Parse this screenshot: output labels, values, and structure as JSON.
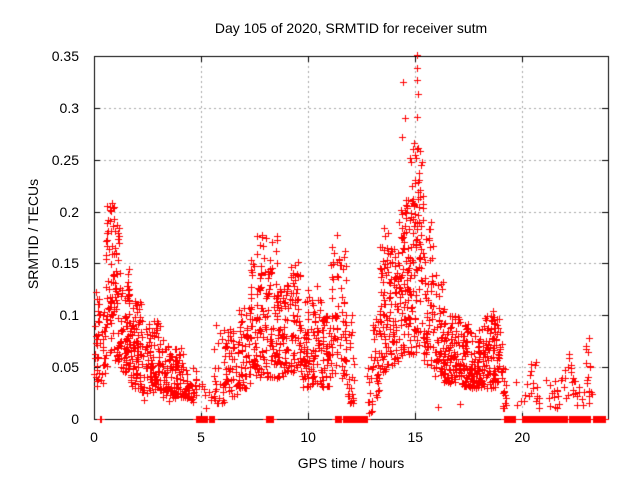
{
  "window": {
    "background": "#ffffff",
    "border_color": "#000000"
  },
  "chart_data": {
    "type": "scatter",
    "title": "Day 105 of 2020, SRMTID for receiver sutm",
    "xlabel": "GPS time / hours",
    "ylabel": "SRMTID / TECUs",
    "xlim": [
      0,
      24
    ],
    "ylim": [
      0,
      0.35
    ],
    "xticks": [
      0,
      5,
      10,
      15,
      20
    ],
    "xtick_labels": [
      "0",
      "5",
      "10",
      "15",
      "20"
    ],
    "yticks": [
      0,
      0.05,
      0.1,
      0.15,
      0.2,
      0.25,
      0.3,
      0.35
    ],
    "ytick_labels": [
      "0",
      "0.05",
      "0.1",
      "0.15",
      "0.2",
      "0.25",
      "0.3",
      "0.35"
    ],
    "legend": "none",
    "grid": {
      "visible": true,
      "style": "dashed",
      "color": "#a8a8a8"
    },
    "marker": {
      "shape": "plus",
      "color": "#ff0000",
      "size": 7
    },
    "series_name": "SRMTID",
    "seed": 20200105,
    "cluster_fields": [
      "t_start",
      "t_end",
      "count",
      "v_min",
      "v_max",
      "bias_exponent"
    ],
    "clusters": [
      [
        0.02,
        0.3,
        30,
        0.03,
        0.135,
        1.2
      ],
      [
        0.3,
        0.6,
        22,
        0.035,
        0.105,
        1.3
      ],
      [
        0.55,
        0.95,
        55,
        0.06,
        0.205,
        0.9
      ],
      [
        0.95,
        1.25,
        45,
        0.055,
        0.19,
        1.0
      ],
      [
        1.25,
        1.65,
        60,
        0.045,
        0.145,
        1.2
      ],
      [
        1.65,
        2.2,
        80,
        0.03,
        0.115,
        1.3
      ],
      [
        2.2,
        3.2,
        110,
        0.025,
        0.095,
        1.4
      ],
      [
        3.2,
        4.3,
        100,
        0.02,
        0.07,
        1.3
      ],
      [
        4.3,
        4.8,
        30,
        0.015,
        0.052,
        1.2
      ],
      [
        4.85,
        5.6,
        10,
        0.008,
        0.035,
        1.2
      ],
      [
        5.6,
        6.1,
        30,
        0.015,
        0.095,
        1.5
      ],
      [
        6.1,
        6.7,
        45,
        0.022,
        0.088,
        1.3
      ],
      [
        6.7,
        7.3,
        55,
        0.03,
        0.11,
        1.4
      ],
      [
        7.3,
        7.8,
        55,
        0.04,
        0.155,
        1.3
      ],
      [
        7.6,
        8.6,
        15,
        0.12,
        0.178,
        1.0
      ],
      [
        7.8,
        8.45,
        60,
        0.04,
        0.15,
        1.3
      ],
      [
        8.45,
        9.1,
        75,
        0.04,
        0.13,
        1.3
      ],
      [
        9.1,
        9.7,
        65,
        0.045,
        0.15,
        1.2
      ],
      [
        9.7,
        10.6,
        90,
        0.03,
        0.125,
        1.4
      ],
      [
        10.6,
        11.05,
        45,
        0.03,
        0.1,
        1.3
      ],
      [
        11.05,
        11.8,
        75,
        0.04,
        0.172,
        1.2
      ],
      [
        11.8,
        12.2,
        25,
        0.015,
        0.11,
        1.5
      ],
      [
        12.75,
        13.0,
        15,
        0.005,
        0.06,
        1.3
      ],
      [
        13.0,
        13.35,
        30,
        0.02,
        0.105,
        1.2
      ],
      [
        13.35,
        13.75,
        55,
        0.045,
        0.18,
        1.1
      ],
      [
        13.75,
        14.25,
        60,
        0.05,
        0.165,
        1.2
      ],
      [
        14.25,
        14.75,
        75,
        0.06,
        0.215,
        1.1
      ],
      [
        14.75,
        15.4,
        105,
        0.06,
        0.262,
        1.1
      ],
      [
        15.4,
        15.85,
        55,
        0.05,
        0.19,
        1.2
      ],
      [
        15.85,
        16.35,
        55,
        0.04,
        0.14,
        1.3
      ],
      [
        16.35,
        17.1,
        85,
        0.035,
        0.1,
        1.3
      ],
      [
        17.1,
        18.1,
        115,
        0.03,
        0.092,
        1.3
      ],
      [
        18.1,
        19.05,
        110,
        0.03,
        0.1,
        1.3
      ],
      [
        19.05,
        19.35,
        14,
        0.01,
        0.055,
        1.3
      ],
      [
        19.7,
        20.3,
        6,
        0.012,
        0.04,
        1.2
      ],
      [
        20.3,
        20.7,
        13,
        0.015,
        0.056,
        1.2
      ],
      [
        20.75,
        21.4,
        8,
        0.01,
        0.038,
        1.2
      ],
      [
        21.45,
        21.95,
        12,
        0.01,
        0.047,
        1.2
      ],
      [
        21.95,
        22.45,
        16,
        0.018,
        0.066,
        1.2
      ],
      [
        22.45,
        22.95,
        8,
        0.01,
        0.04,
        1.2
      ],
      [
        22.95,
        23.25,
        14,
        0.012,
        0.075,
        1.1
      ]
    ],
    "zero_runs": [
      [
        0.28,
        0.34
      ],
      [
        4.75,
        5.3
      ],
      [
        5.35,
        5.65
      ],
      [
        8.05,
        8.4
      ],
      [
        11.25,
        11.55
      ],
      [
        11.62,
        12.75
      ],
      [
        19.15,
        19.65
      ],
      [
        20.0,
        20.95
      ],
      [
        21.0,
        22.1
      ],
      [
        22.2,
        23.15
      ],
      [
        23.3,
        23.85
      ]
    ],
    "peak_points": [
      [
        15.08,
        0.351
      ],
      [
        15.09,
        0.338
      ],
      [
        15.07,
        0.327
      ],
      [
        14.45,
        0.325
      ],
      [
        15.11,
        0.313
      ],
      [
        14.54,
        0.29
      ],
      [
        15.08,
        0.291
      ],
      [
        14.37,
        0.272
      ],
      [
        14.95,
        0.266
      ],
      [
        15.2,
        0.258
      ],
      [
        14.75,
        0.252
      ],
      [
        15.3,
        0.248
      ],
      [
        0.85,
        0.208
      ],
      [
        0.78,
        0.201
      ],
      [
        7.83,
        0.177
      ],
      [
        7.73,
        0.168
      ],
      [
        8.53,
        0.173
      ],
      [
        8.5,
        0.162
      ],
      [
        8.55,
        0.15
      ],
      [
        11.35,
        0.177
      ],
      [
        13.52,
        0.184
      ],
      [
        13.6,
        0.176
      ],
      [
        9.54,
        0.151
      ],
      [
        9.5,
        0.14
      ],
      [
        10.4,
        0.128
      ],
      [
        18.62,
        0.104
      ],
      [
        23.1,
        0.078
      ],
      [
        17.1,
        0.014
      ],
      [
        16.07,
        0.012
      ],
      [
        2.35,
        0.018
      ],
      [
        3.5,
        0.017
      ]
    ]
  }
}
